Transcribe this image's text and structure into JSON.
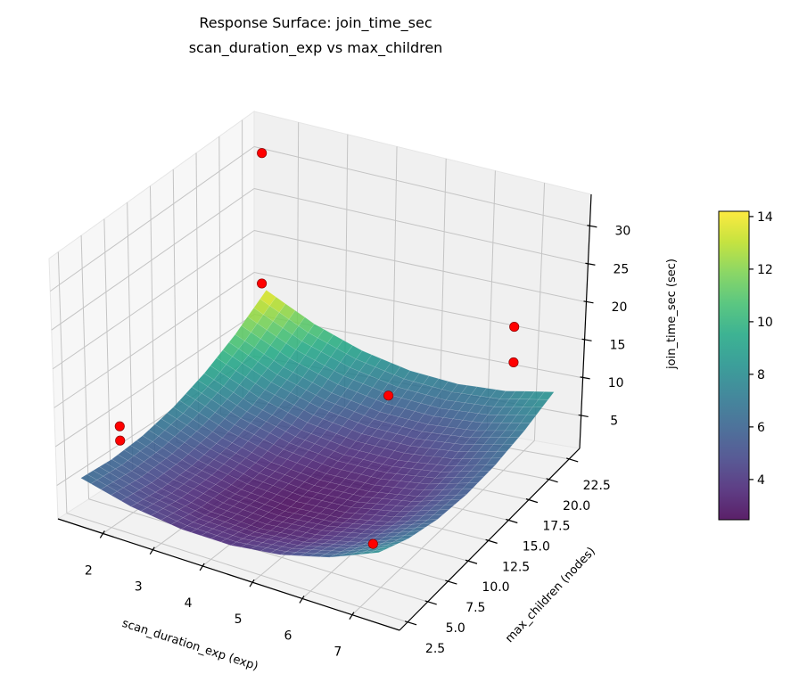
{
  "chart_data": {
    "type": "surface3d",
    "title": "Response Surface: join_time_sec",
    "subtitle": "scan_duration_exp vs max_children",
    "xlabel": "scan_duration_exp (exp)",
    "ylabel": "max_children (nodes)",
    "zlabel": "join_time_sec (sec)",
    "xlim": [
      1.1,
      7.95
    ],
    "ylim": [
      1.5,
      23.8
    ],
    "zlim": [
      0.7,
      34.2
    ],
    "xticks": [
      "2",
      "3",
      "4",
      "5",
      "6",
      "7"
    ],
    "yticks": [
      "2.5",
      "5.0",
      "7.5",
      "10.0",
      "12.5",
      "15.0",
      "17.5",
      "20.0",
      "22.5"
    ],
    "zticks": [
      "5",
      "10",
      "15",
      "20",
      "25",
      "30"
    ],
    "grid": true,
    "colormap": "viridis",
    "colorbar": {
      "range": [
        2.47,
        14.2
      ],
      "ticks": [
        "4",
        "6",
        "8",
        "10",
        "12",
        "14"
      ],
      "placement": "right"
    },
    "surface": {
      "x": [
        1.5,
        2.5,
        3.5,
        4.5,
        5.5,
        6.5,
        7.5
      ],
      "y": [
        2,
        5.5,
        9,
        12.5,
        16,
        19.5,
        23
      ],
      "z": [
        [
          6.37,
          4.71,
          3.85,
          3.79,
          4.53,
          6.07,
          8.41
        ],
        [
          6.1,
          4.23,
          3.16,
          2.89,
          3.42,
          4.75,
          6.88
        ],
        [
          6.44,
          4.36,
          3.08,
          2.6,
          2.92,
          4.04,
          5.96
        ],
        [
          7.4,
          5.11,
          3.62,
          2.93,
          3.04,
          3.95,
          5.66
        ],
        [
          8.97,
          6.47,
          4.77,
          3.87,
          3.77,
          4.47,
          5.97
        ],
        [
          11.15,
          8.44,
          6.53,
          5.42,
          5.11,
          5.6,
          6.89
        ],
        [
          13.94,
          11.02,
          8.9,
          7.58,
          7.06,
          7.34,
          8.42
        ]
      ]
    },
    "points": {
      "color": "#ff0000",
      "x": [
        1.5,
        1.5,
        7.5,
        7.5,
        4.5,
        1.7,
        1.7,
        6.4
      ],
      "y": [
        22.5,
        22.5,
        18,
        18,
        20.5,
        5.4,
        5.4,
        7.7
      ],
      "z": [
        30.8,
        15.1,
        21.5,
        17,
        6.6,
        10.7,
        8.9,
        2.4
      ]
    }
  }
}
